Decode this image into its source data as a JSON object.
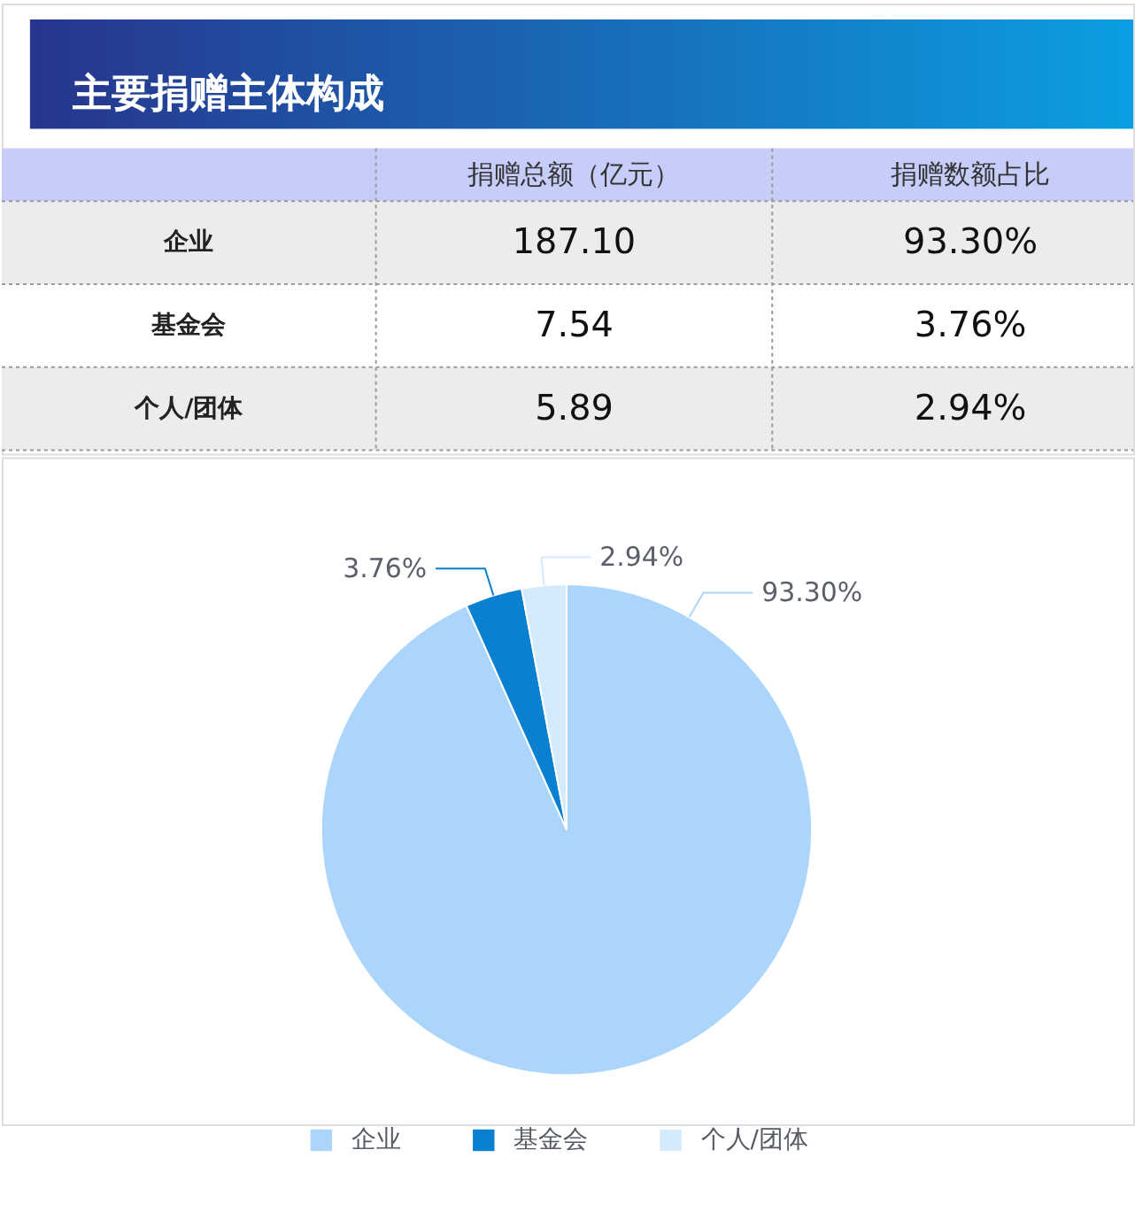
{
  "chart_data": [
    {
      "type": "other",
      "title": "主要捐赠主体构成",
      "categories": [
        "捐赠总额（亿元）",
        "捐赠数额占比"
      ],
      "y_categories": [
        "企业",
        "基金会",
        "个人/团体"
      ],
      "cell_labels": [
        [
          "187.10",
          "93.30%"
        ],
        [
          "7.54",
          "3.76%"
        ],
        [
          "5.89",
          "2.94%"
        ]
      ]
    },
    {
      "type": "pie",
      "categories": [
        "企业",
        "基金会",
        "个人/团体"
      ],
      "values": [
        93.3,
        3.76,
        2.94
      ],
      "colors": [
        "#acd5fb",
        "#0a80d0",
        "#d4eafd"
      ],
      "value_labels": [
        "93.30%",
        "3.76%",
        "2.94%"
      ],
      "legend": "bottom"
    }
  ]
}
